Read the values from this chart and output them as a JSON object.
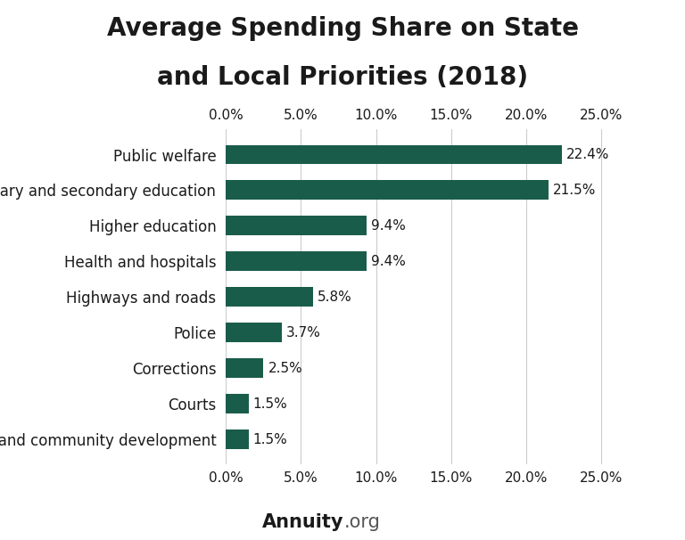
{
  "title_line1": "Average Spending Share on State",
  "title_line2": "and Local Priorities (2018)",
  "categories": [
    "Housing and community development",
    "Courts",
    "Corrections",
    "Police",
    "Highways and roads",
    "Health and hospitals",
    "Higher education",
    "Elementary and secondary education",
    "Public welfare"
  ],
  "values": [
    1.5,
    1.5,
    2.5,
    3.7,
    5.8,
    9.4,
    9.4,
    21.5,
    22.4
  ],
  "bar_color": "#1a5c4a",
  "label_color": "#1a1a1a",
  "background_color": "#ffffff",
  "title_fontsize": 20,
  "tick_fontsize": 11,
  "label_fontsize": 12,
  "value_fontsize": 11,
  "xlim": [
    0,
    26.5
  ],
  "xticks": [
    0,
    5,
    10,
    15,
    20,
    25
  ],
  "xtick_labels": [
    "0.0%",
    "5.0%",
    "10.0%",
    "15.0%",
    "20.0%",
    "25.0%"
  ],
  "footer_bold": "Annuity",
  "footer_normal": ".org",
  "footer_fontsize": 15
}
